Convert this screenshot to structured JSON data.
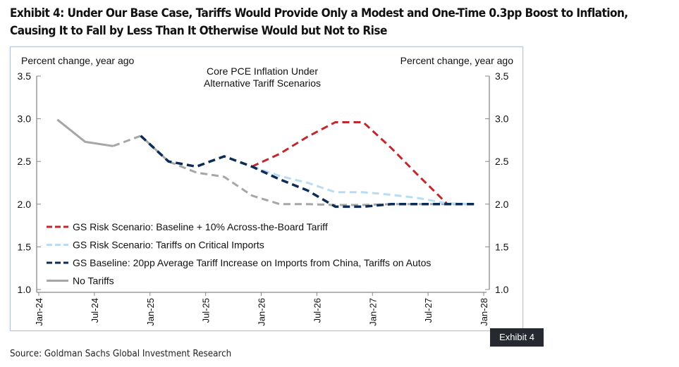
{
  "title_line1": "Exhibit 4: Under Our Base Case, Tariffs Would Provide Only a Modest and One-Time 0.3pp Boost to Inflation,",
  "title_line2": "Causing It to Fall by Less Than It Otherwise Would but Not to Rise",
  "badge": "Exhibit 4",
  "source": "Source: Goldman Sachs Global Investment Research",
  "chart_data": {
    "type": "line",
    "title_line1": "Core PCE Inflation Under",
    "title_line2": "Alternative Tariff Scenarios",
    "ylabel_left": "Percent change, year ago",
    "ylabel_right": "Percent change, year ago",
    "ylim": [
      1.0,
      3.5
    ],
    "yticks": [
      "3.5",
      "3.0",
      "2.5",
      "2.0",
      "1.5",
      "1.0"
    ],
    "xlim": [
      "2024-01",
      "2028-01"
    ],
    "xticks": [
      "Jan-24",
      "Jul-24",
      "Jan-25",
      "Jul-25",
      "Jan-26",
      "Jul-26",
      "Jan-27",
      "Jul-27",
      "Jan-28"
    ],
    "grid": false,
    "legend_placement": "bottom-left",
    "series": [
      {
        "name": "GS Risk Scenario: Baseline + 10% Across-the-Board Tariff",
        "color": "#c0282d",
        "style": "dashed",
        "x": [
          "2025-12",
          "2026-03",
          "2026-06",
          "2026-09",
          "2026-12",
          "2027-03",
          "2027-06",
          "2027-09"
        ],
        "values": [
          2.44,
          2.59,
          2.79,
          2.96,
          2.96,
          2.66,
          2.33,
          2.01
        ]
      },
      {
        "name": "GS Risk Scenario: Tariffs on Critical Imports",
        "color": "#b9dcf2",
        "style": "dashed",
        "x": [
          "2025-12",
          "2026-03",
          "2026-06",
          "2026-09",
          "2026-12",
          "2027-03",
          "2027-06",
          "2027-09",
          "2027-12"
        ],
        "values": [
          2.44,
          2.33,
          2.25,
          2.14,
          2.14,
          2.11,
          2.07,
          2.01,
          2.0
        ]
      },
      {
        "name": "No Tariffs",
        "color": "#a6a6a6",
        "style": "solid-then-dashed",
        "solid_until": "2024-09",
        "x": [
          "2024-03",
          "2024-06",
          "2024-09",
          "2024-12",
          "2025-03",
          "2025-06",
          "2025-09",
          "2025-12",
          "2026-03",
          "2026-06",
          "2026-09",
          "2026-12",
          "2027-03",
          "2027-06",
          "2027-09",
          "2027-12"
        ],
        "values": [
          2.99,
          2.73,
          2.68,
          2.8,
          2.5,
          2.37,
          2.32,
          2.1,
          2.0,
          2.0,
          1.99,
          1.99,
          2.0,
          2.0,
          2.0,
          2.0
        ]
      },
      {
        "name": "GS Baseline: 20pp Average Tariff Increase on Imports from China, Tariffs on Autos",
        "color": "#0b2d55",
        "style": "dashed",
        "x": [
          "2024-12",
          "2025-03",
          "2025-06",
          "2025-09",
          "2025-12",
          "2026-03",
          "2026-06",
          "2026-09",
          "2026-12",
          "2027-03",
          "2027-06",
          "2027-09",
          "2027-12"
        ],
        "values": [
          2.8,
          2.5,
          2.44,
          2.56,
          2.44,
          2.29,
          2.16,
          1.97,
          1.97,
          2.0,
          2.0,
          2.0,
          2.0
        ]
      }
    ],
    "legend_order": [
      0,
      1,
      3,
      2
    ]
  }
}
